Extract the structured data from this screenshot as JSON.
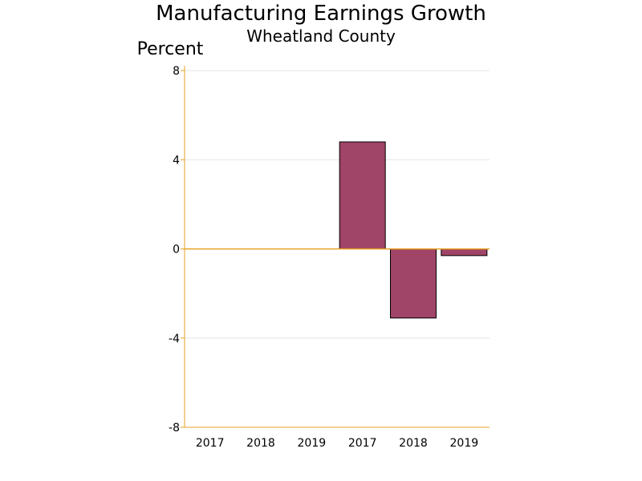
{
  "chart_data": {
    "type": "bar",
    "title": "Manufacturing Earnings Growth",
    "subtitle": "Wheatland County",
    "ylabel": "Percent",
    "xlabel": "",
    "categories": [
      "2017",
      "2018",
      "2019",
      "2017",
      "2018",
      "2019"
    ],
    "values": [
      null,
      null,
      null,
      4.8,
      -3.1,
      -0.3
    ],
    "ylim": [
      -8,
      8
    ],
    "yticks": [
      8,
      4,
      0,
      -4,
      -8
    ],
    "grid": true,
    "colors": {
      "bar_fill": "#A04468",
      "bar_stroke": "#000000",
      "axis": "#E8A020",
      "grid": "#E6E6E6"
    }
  }
}
